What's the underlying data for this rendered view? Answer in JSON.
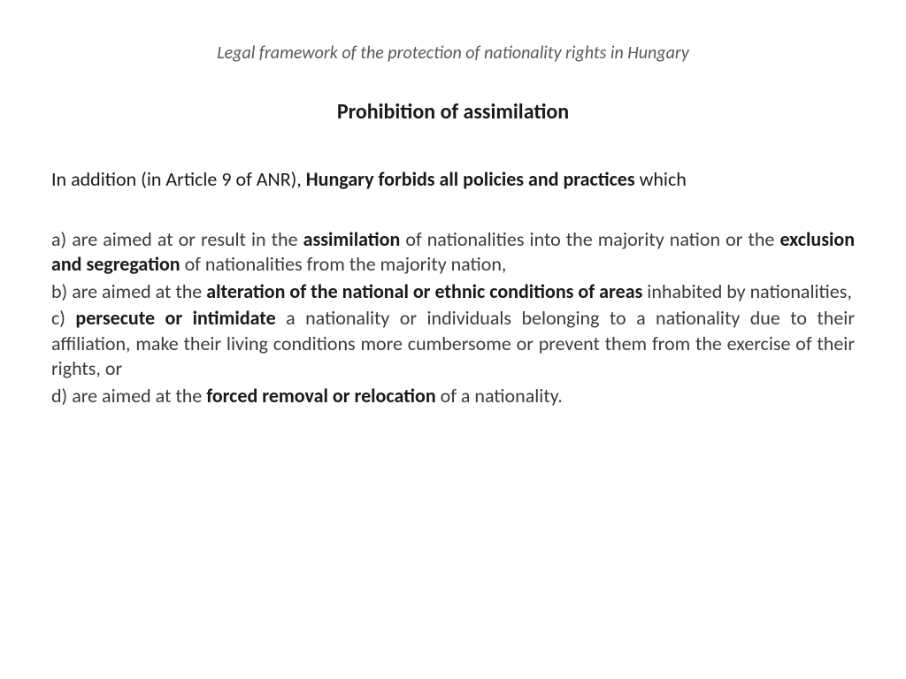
{
  "header": "Legal framework of the protection of nationality rights in Hungary",
  "title": "Prohibition of assimilation",
  "intro_pre": "In addition (in Article 9 of ANR), ",
  "intro_bold": "Hungary forbids all policies and practices",
  "intro_post": " which",
  "a_pre": "a) are aimed at or result in the ",
  "a_b1": "assimilation",
  "a_mid": " of nationalities into the majority nation or the ",
  "a_b2": "exclusion and segregation",
  "a_post": " of nationalities from the majority nation,",
  "b_pre": "b) are aimed at the ",
  "b_b1": "alteration of the national or ethnic conditions of areas",
  "b_post": " inhabited by nationalities,",
  "c_pre": "c) ",
  "c_b1": "persecute or intimidate",
  "c_post": " a nationality or individuals belonging to a nationality due to their affiliation, make their living conditions more cumbersome or prevent them from the exercise of their rights, or",
  "d_pre": "d) are aimed at the ",
  "d_b1": "forced removal or relocation",
  "d_post": " of a nationality."
}
